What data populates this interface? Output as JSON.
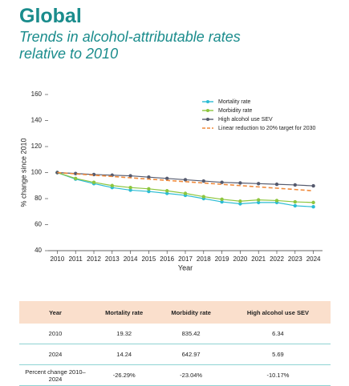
{
  "chart_data": {
    "type": "line",
    "title": "Global",
    "subtitle": "Trends in alcohol-attributable rates relative to 2010",
    "x_label": "Year",
    "y_label": "% change since 2010",
    "x": [
      2010,
      2011,
      2012,
      2013,
      2014,
      2015,
      2016,
      2017,
      2018,
      2019,
      2020,
      2021,
      2022,
      2023,
      2024
    ],
    "xlim": [
      2009.5,
      2024.5
    ],
    "xticks": [
      2010,
      2011,
      2012,
      2013,
      2014,
      2015,
      2016,
      2017,
      2018,
      2019,
      2020,
      2021,
      2022,
      2023,
      2024
    ],
    "ylim": [
      40,
      160
    ],
    "yticks": [
      40,
      60,
      80,
      100,
      120,
      140,
      160
    ],
    "grid": false,
    "legend": "upper right",
    "series": [
      {
        "name": "Mortality rate",
        "color": "#2bbcd4",
        "markers": true,
        "values": [
          100,
          95,
          91.5,
          88.5,
          86.5,
          85.5,
          84,
          82.5,
          80,
          77.5,
          76,
          77,
          77,
          74.5,
          73.7
        ]
      },
      {
        "name": "Morbidity rate",
        "color": "#8dc63f",
        "markers": true,
        "values": [
          100,
          95.5,
          92.5,
          90,
          88.5,
          87.5,
          86,
          84,
          81.5,
          79.5,
          78,
          79,
          78.5,
          77.5,
          77
        ]
      },
      {
        "name": "High alcohol use SEV",
        "color": "#555a6e",
        "markers": true,
        "values": [
          100,
          99.3,
          98.5,
          98,
          97.5,
          96.5,
          95.5,
          94.5,
          93.5,
          92.5,
          92,
          91.5,
          91,
          90.5,
          89.8
        ]
      },
      {
        "name": "Linear reduction to 20% target for 2030",
        "color": "#f08a3c",
        "markers": false,
        "dashed": true,
        "values": [
          100,
          99,
          98,
          97,
          96,
          95,
          94,
          93,
          92,
          91,
          90,
          89,
          88,
          87,
          86
        ]
      }
    ]
  },
  "table": {
    "header": [
      "Year",
      "Mortality rate",
      "Morbidity rate",
      "High alcohol use SEV"
    ],
    "rows": [
      [
        "2010",
        "19.32",
        "835.42",
        "6.34"
      ],
      [
        "2024",
        "14.24",
        "642.97",
        "5.69"
      ],
      [
        "Percent change 2010–2024",
        "-26.29%",
        "-23.04%",
        "-10.17%"
      ]
    ]
  }
}
